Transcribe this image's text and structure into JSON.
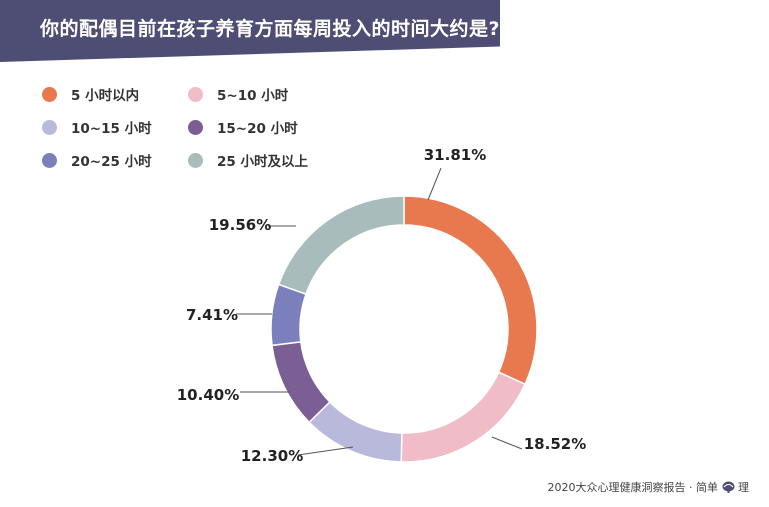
{
  "title": "你的配偶目前在孩子养育方面每周投入的时间大约是?",
  "chart_data": {
    "type": "pie",
    "title": "你的配偶目前在孩子养育方面每周投入的时间大约是?",
    "categories": [
      "5 小时以内",
      "5~10 小时",
      "10~15 小时",
      "15~20 小时",
      "20~25 小时",
      "25 小时及以上"
    ],
    "values": [
      31.81,
      18.52,
      12.3,
      10.4,
      7.41,
      19.56
    ],
    "value_labels": [
      "31.81%",
      "18.52%",
      "12.30%",
      "10.40%",
      "7.41%",
      "19.56%"
    ],
    "colors": [
      "#e8784e",
      "#f0bcc8",
      "#b9b9dc",
      "#7a5e94",
      "#7b80bd",
      "#a7bcbb"
    ],
    "donut": true,
    "legend_position": "top-left"
  },
  "footer": {
    "text": "2020大众心理健康洞察报告 · 简单",
    "brand_suffix": "理"
  }
}
